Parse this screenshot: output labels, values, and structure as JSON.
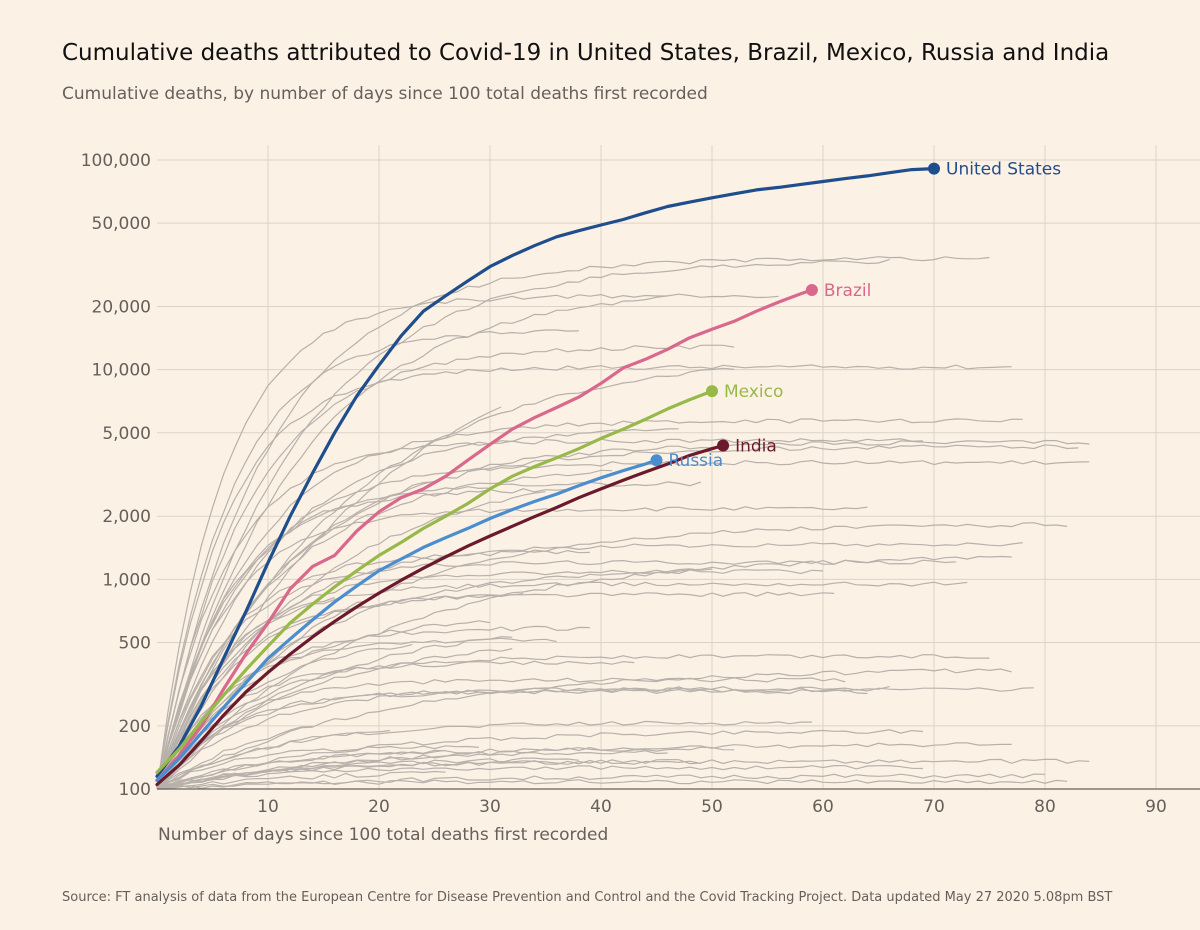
{
  "chart_data": {
    "type": "line",
    "title": "Cumulative deaths attributed to Covid-19 in United States, Brazil, Mexico, Russia and India",
    "subtitle": "Cumulative deaths, by number of days since 100 total deaths first recorded",
    "xlabel": "Number of days since 100 total deaths first recorded",
    "ylabel": "",
    "yscale": "log",
    "xlim": [
      0,
      95
    ],
    "ylim": [
      100,
      120000
    ],
    "xticks": [
      10,
      20,
      30,
      40,
      50,
      60,
      70,
      80,
      90
    ],
    "yticks": [
      {
        "value": 100,
        "label": "100"
      },
      {
        "value": 200,
        "label": "200"
      },
      {
        "value": 500,
        "label": "500"
      },
      {
        "value": 1000,
        "label": "1,000"
      },
      {
        "value": 2000,
        "label": "2,000"
      },
      {
        "value": 5000,
        "label": "5,000"
      },
      {
        "value": 10000,
        "label": "10,000"
      },
      {
        "value": 20000,
        "label": "20,000"
      },
      {
        "value": 50000,
        "label": "50,000"
      },
      {
        "value": 100000,
        "label": "100,000"
      }
    ],
    "source": "Source: FT analysis of data from the European Centre for Disease Prevention and Control and the Covid Tracking Project. Data updated May 27 2020 5.08pm BST",
    "series": [
      {
        "name": "United States",
        "color": "#1f4e8c",
        "label": "United States",
        "points": [
          [
            0,
            115
          ],
          [
            2,
            160
          ],
          [
            4,
            250
          ],
          [
            6,
            420
          ],
          [
            8,
            700
          ],
          [
            10,
            1200
          ],
          [
            12,
            2000
          ],
          [
            14,
            3200
          ],
          [
            16,
            5000
          ],
          [
            18,
            7500
          ],
          [
            20,
            10500
          ],
          [
            22,
            14500
          ],
          [
            24,
            19000
          ],
          [
            26,
            22500
          ],
          [
            28,
            26500
          ],
          [
            30,
            31000
          ],
          [
            32,
            35000
          ],
          [
            34,
            39000
          ],
          [
            36,
            43000
          ],
          [
            38,
            46000
          ],
          [
            40,
            49000
          ],
          [
            42,
            52000
          ],
          [
            44,
            56000
          ],
          [
            46,
            60000
          ],
          [
            48,
            63000
          ],
          [
            50,
            66000
          ],
          [
            52,
            69000
          ],
          [
            54,
            72000
          ],
          [
            56,
            74000
          ],
          [
            58,
            76500
          ],
          [
            60,
            79000
          ],
          [
            62,
            81500
          ],
          [
            64,
            84000
          ],
          [
            66,
            87000
          ],
          [
            68,
            90000
          ],
          [
            70,
            91000
          ]
        ]
      },
      {
        "name": "Brazil",
        "color": "#d9688d",
        "label": "Brazil",
        "points": [
          [
            0,
            110
          ],
          [
            2,
            145
          ],
          [
            4,
            200
          ],
          [
            6,
            300
          ],
          [
            8,
            440
          ],
          [
            10,
            620
          ],
          [
            12,
            900
          ],
          [
            14,
            1150
          ],
          [
            16,
            1300
          ],
          [
            18,
            1700
          ],
          [
            20,
            2100
          ],
          [
            22,
            2450
          ],
          [
            24,
            2700
          ],
          [
            26,
            3100
          ],
          [
            28,
            3700
          ],
          [
            30,
            4400
          ],
          [
            32,
            5200
          ],
          [
            34,
            5900
          ],
          [
            36,
            6600
          ],
          [
            38,
            7400
          ],
          [
            40,
            8600
          ],
          [
            42,
            10200
          ],
          [
            44,
            11200
          ],
          [
            46,
            12500
          ],
          [
            48,
            14200
          ],
          [
            50,
            15600
          ],
          [
            52,
            17000
          ],
          [
            54,
            19000
          ],
          [
            56,
            21000
          ],
          [
            58,
            23000
          ],
          [
            59,
            24000
          ]
        ]
      },
      {
        "name": "Mexico",
        "color": "#96b94a",
        "label": "Mexico",
        "points": [
          [
            0,
            120
          ],
          [
            2,
            155
          ],
          [
            4,
            210
          ],
          [
            6,
            280
          ],
          [
            8,
            370
          ],
          [
            10,
            480
          ],
          [
            12,
            620
          ],
          [
            14,
            760
          ],
          [
            16,
            920
          ],
          [
            18,
            1100
          ],
          [
            20,
            1300
          ],
          [
            22,
            1500
          ],
          [
            24,
            1750
          ],
          [
            26,
            2000
          ],
          [
            28,
            2300
          ],
          [
            30,
            2700
          ],
          [
            32,
            3100
          ],
          [
            34,
            3450
          ],
          [
            36,
            3800
          ],
          [
            38,
            4200
          ],
          [
            40,
            4700
          ],
          [
            42,
            5200
          ],
          [
            44,
            5800
          ],
          [
            46,
            6500
          ],
          [
            48,
            7200
          ],
          [
            50,
            7900
          ]
        ]
      },
      {
        "name": "Russia",
        "color": "#4a8ecf",
        "label": "Russia",
        "points": [
          [
            0,
            110
          ],
          [
            2,
            140
          ],
          [
            4,
            185
          ],
          [
            6,
            245
          ],
          [
            8,
            320
          ],
          [
            10,
            420
          ],
          [
            12,
            520
          ],
          [
            14,
            640
          ],
          [
            16,
            780
          ],
          [
            18,
            930
          ],
          [
            20,
            1100
          ],
          [
            22,
            1250
          ],
          [
            24,
            1420
          ],
          [
            26,
            1580
          ],
          [
            28,
            1750
          ],
          [
            30,
            1950
          ],
          [
            32,
            2150
          ],
          [
            34,
            2350
          ],
          [
            36,
            2550
          ],
          [
            38,
            2800
          ],
          [
            40,
            3050
          ],
          [
            42,
            3300
          ],
          [
            44,
            3550
          ],
          [
            45,
            3700
          ]
        ]
      },
      {
        "name": "India",
        "color": "#6b1a2e",
        "label": "India",
        "points": [
          [
            0,
            105
          ],
          [
            2,
            130
          ],
          [
            4,
            170
          ],
          [
            6,
            225
          ],
          [
            8,
            290
          ],
          [
            10,
            360
          ],
          [
            12,
            440
          ],
          [
            14,
            530
          ],
          [
            16,
            630
          ],
          [
            18,
            740
          ],
          [
            20,
            860
          ],
          [
            22,
            990
          ],
          [
            24,
            1130
          ],
          [
            26,
            1280
          ],
          [
            28,
            1440
          ],
          [
            30,
            1610
          ],
          [
            32,
            1790
          ],
          [
            34,
            1990
          ],
          [
            36,
            2200
          ],
          [
            38,
            2450
          ],
          [
            40,
            2700
          ],
          [
            42,
            2970
          ],
          [
            44,
            3250
          ],
          [
            46,
            3550
          ],
          [
            48,
            3900
          ],
          [
            50,
            4200
          ],
          [
            51,
            4350
          ]
        ]
      }
    ]
  }
}
